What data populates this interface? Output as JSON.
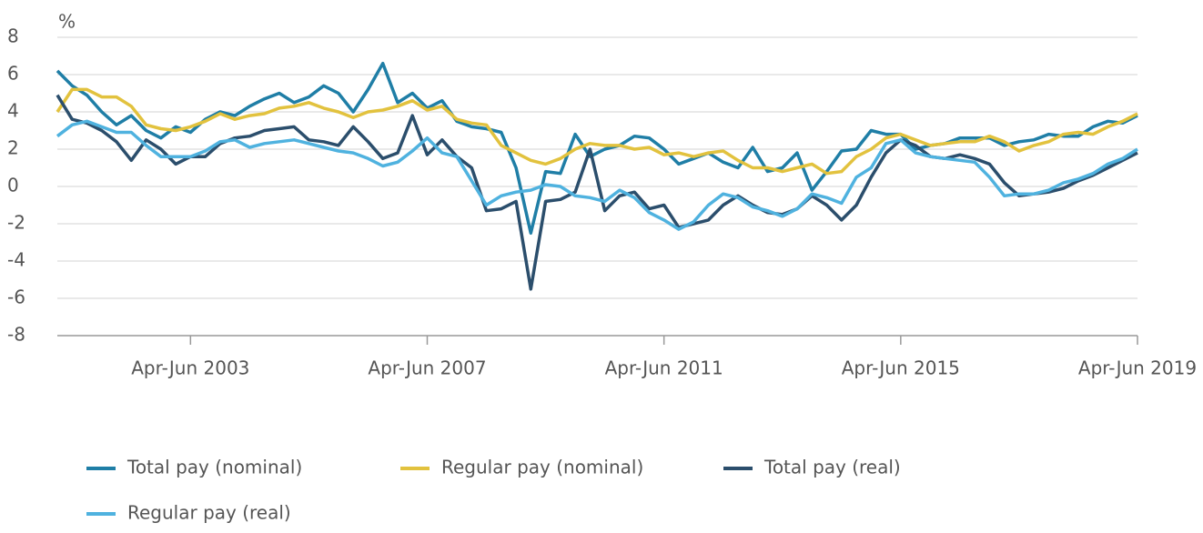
{
  "chart_data": {
    "type": "line",
    "y_unit": "%",
    "categories": [
      null,
      null,
      null,
      null,
      null,
      null,
      null,
      null,
      null,
      "Apr-Jun 2003",
      null,
      null,
      null,
      null,
      null,
      null,
      null,
      null,
      null,
      null,
      null,
      null,
      null,
      null,
      null,
      "Apr-Jun 2007",
      null,
      null,
      null,
      null,
      null,
      null,
      null,
      null,
      null,
      null,
      null,
      null,
      null,
      null,
      null,
      "Apr-Jun 2011",
      null,
      null,
      null,
      null,
      null,
      null,
      null,
      null,
      null,
      null,
      null,
      null,
      null,
      null,
      null,
      "Apr-Jun 2015",
      null,
      null,
      null,
      null,
      null,
      null,
      null,
      null,
      null,
      null,
      null,
      null,
      null,
      null,
      null,
      "Apr-Jun 2019"
    ],
    "series": [
      {
        "name": "Total pay (nominal)",
        "color": "#1f7ea6",
        "values": [
          6.2,
          5.4,
          4.9,
          4.0,
          3.3,
          3.8,
          3.0,
          2.6,
          3.2,
          2.9,
          3.6,
          4.0,
          3.8,
          4.3,
          4.7,
          5.0,
          4.5,
          4.8,
          5.4,
          5.0,
          4.0,
          5.2,
          6.6,
          4.5,
          5.0,
          4.2,
          4.6,
          3.5,
          3.2,
          3.1,
          2.9,
          1.0,
          -2.5,
          0.8,
          0.7,
          2.8,
          1.6,
          2.0,
          2.2,
          2.7,
          2.6,
          2.0,
          1.2,
          1.5,
          1.8,
          1.3,
          1.0,
          2.1,
          0.8,
          1.0,
          1.8,
          -0.2,
          0.8,
          1.9,
          2.0,
          3.0,
          2.8,
          2.8,
          2.0,
          2.2,
          2.3,
          2.6,
          2.6,
          2.6,
          2.2,
          2.4,
          2.5,
          2.8,
          2.7,
          2.7,
          3.2,
          3.5,
          3.4,
          3.8
        ]
      },
      {
        "name": "Regular pay (nominal)",
        "color": "#e2c23e",
        "values": [
          4.0,
          5.2,
          5.2,
          4.8,
          4.8,
          4.3,
          3.3,
          3.1,
          3.0,
          3.2,
          3.5,
          3.9,
          3.6,
          3.8,
          3.9,
          4.2,
          4.3,
          4.5,
          4.2,
          4.0,
          3.7,
          4.0,
          4.1,
          4.3,
          4.6,
          4.1,
          4.3,
          3.6,
          3.4,
          3.3,
          2.2,
          1.8,
          1.4,
          1.2,
          1.5,
          2.0,
          2.3,
          2.2,
          2.2,
          2.0,
          2.1,
          1.7,
          1.8,
          1.6,
          1.8,
          1.9,
          1.4,
          1.0,
          1.0,
          0.8,
          1.0,
          1.2,
          0.7,
          0.8,
          1.6,
          2.0,
          2.6,
          2.8,
          2.5,
          2.2,
          2.3,
          2.4,
          2.4,
          2.7,
          2.4,
          1.9,
          2.2,
          2.4,
          2.8,
          2.9,
          2.8,
          3.2,
          3.5,
          3.9
        ]
      },
      {
        "name": "Total pay (real)",
        "color": "#2b4e6c",
        "values": [
          4.9,
          3.6,
          3.4,
          3.0,
          2.4,
          1.4,
          2.5,
          2.0,
          1.2,
          1.6,
          1.6,
          2.3,
          2.6,
          2.7,
          3.0,
          3.1,
          3.2,
          2.5,
          2.4,
          2.2,
          3.2,
          2.4,
          1.5,
          1.8,
          3.8,
          1.7,
          2.5,
          1.6,
          1.0,
          -1.3,
          -1.2,
          -0.8,
          -5.5,
          -0.8,
          -0.7,
          -0.3,
          2.0,
          -1.3,
          -0.5,
          -0.3,
          -1.2,
          -1.0,
          -2.2,
          -2.0,
          -1.8,
          -1.0,
          -0.5,
          -1.0,
          -1.4,
          -1.5,
          -1.2,
          -0.5,
          -1.0,
          -1.8,
          -1.0,
          0.5,
          1.8,
          2.5,
          2.2,
          1.6,
          1.5,
          1.7,
          1.5,
          1.2,
          0.2,
          -0.5,
          -0.4,
          -0.3,
          -0.1,
          0.3,
          0.6,
          1.0,
          1.4,
          1.8
        ]
      },
      {
        "name": "Regular pay (real)",
        "color": "#4fb2df",
        "values": [
          2.7,
          3.3,
          3.5,
          3.2,
          2.9,
          2.9,
          2.2,
          1.6,
          1.6,
          1.6,
          1.9,
          2.4,
          2.5,
          2.1,
          2.3,
          2.4,
          2.5,
          2.3,
          2.1,
          1.9,
          1.8,
          1.5,
          1.1,
          1.3,
          1.9,
          2.6,
          1.8,
          1.6,
          0.3,
          -1.0,
          -0.5,
          -0.3,
          -0.2,
          0.1,
          0.0,
          -0.5,
          -0.6,
          -0.8,
          -0.2,
          -0.6,
          -1.4,
          -1.8,
          -2.3,
          -1.9,
          -1.0,
          -0.4,
          -0.6,
          -1.1,
          -1.3,
          -1.6,
          -1.2,
          -0.4,
          -0.6,
          -0.9,
          0.5,
          1.0,
          2.3,
          2.5,
          1.8,
          1.6,
          1.5,
          1.4,
          1.3,
          0.5,
          -0.5,
          -0.4,
          -0.4,
          -0.2,
          0.2,
          0.4,
          0.7,
          1.2,
          1.5,
          2.0
        ]
      }
    ],
    "ylim": [
      -8,
      8
    ],
    "yticks": [
      -8,
      -6,
      -4,
      -2,
      0,
      2,
      4,
      6,
      8
    ],
    "grid": true
  }
}
